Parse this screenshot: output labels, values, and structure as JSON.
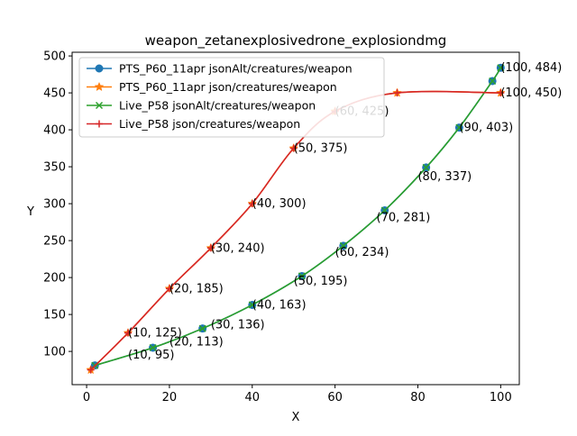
{
  "chart_data": {
    "type": "line",
    "title": "weapon_zetanexplosivedrone_explosiondmg",
    "xlabel": "X",
    "ylabel": "Y",
    "xlim": [
      -3.5,
      104.5
    ],
    "ylim": [
      55,
      505
    ],
    "x_ticks": [
      0,
      20,
      40,
      60,
      80,
      100
    ],
    "y_ticks": [
      100,
      150,
      200,
      250,
      300,
      350,
      400,
      450,
      500
    ],
    "legend_position": "upper-left",
    "series": [
      {
        "name": "PTS_P60_11apr jsonAlt/creatures/weapon",
        "color": "#1f77b4",
        "marker": "circle",
        "x": [
          2,
          16,
          28,
          40,
          52,
          62,
          72,
          82,
          90,
          98,
          100
        ],
        "y": [
          81,
          105,
          131,
          163,
          202,
          243,
          291,
          349,
          403,
          466,
          484
        ]
      },
      {
        "name": "PTS_P60_11apr json/creatures/weapon",
        "color": "#ff7f0e",
        "marker": "star",
        "x": [
          1,
          10,
          20,
          30,
          40,
          50,
          60,
          75,
          100
        ],
        "y": [
          75,
          125,
          185,
          240,
          300,
          375,
          425,
          450,
          450
        ]
      },
      {
        "name": "Live_P58 jsonAlt/creatures/weapon",
        "color": "#2ca02c",
        "marker": "x",
        "x": [
          2,
          16,
          28,
          40,
          52,
          62,
          72,
          82,
          90,
          98,
          100
        ],
        "y": [
          81,
          105,
          131,
          163,
          202,
          243,
          291,
          349,
          403,
          466,
          484
        ]
      },
      {
        "name": "Live_P58 json/creatures/weapon",
        "color": "#d62728",
        "marker": "plus",
        "x": [
          1,
          10,
          20,
          30,
          40,
          50,
          60,
          75,
          100
        ],
        "y": [
          75,
          125,
          185,
          240,
          300,
          375,
          425,
          450,
          450
        ]
      }
    ],
    "annotations": [
      {
        "text": "(10, 95)",
        "x": 10,
        "y": 95
      },
      {
        "text": "(20, 113)",
        "x": 20,
        "y": 113
      },
      {
        "text": "(30, 136)",
        "x": 30,
        "y": 136
      },
      {
        "text": "(40, 163)",
        "x": 40,
        "y": 163
      },
      {
        "text": "(50, 195)",
        "x": 50,
        "y": 195
      },
      {
        "text": "(60, 234)",
        "x": 60,
        "y": 234
      },
      {
        "text": "(70, 281)",
        "x": 70,
        "y": 281
      },
      {
        "text": "(80, 337)",
        "x": 80,
        "y": 337
      },
      {
        "text": "(90, 403)",
        "x": 90,
        "y": 403
      },
      {
        "text": "(100, 484)",
        "x": 100,
        "y": 484
      },
      {
        "text": "(10, 125)",
        "x": 10,
        "y": 125
      },
      {
        "text": "(20, 185)",
        "x": 20,
        "y": 185
      },
      {
        "text": "(30, 240)",
        "x": 30,
        "y": 240
      },
      {
        "text": "(40, 300)",
        "x": 40,
        "y": 300
      },
      {
        "text": "(50, 375)",
        "x": 50,
        "y": 375
      },
      {
        "text": "(60, 425)",
        "x": 60,
        "y": 425
      },
      {
        "text": "(100, 450)",
        "x": 100,
        "y": 450
      }
    ]
  }
}
